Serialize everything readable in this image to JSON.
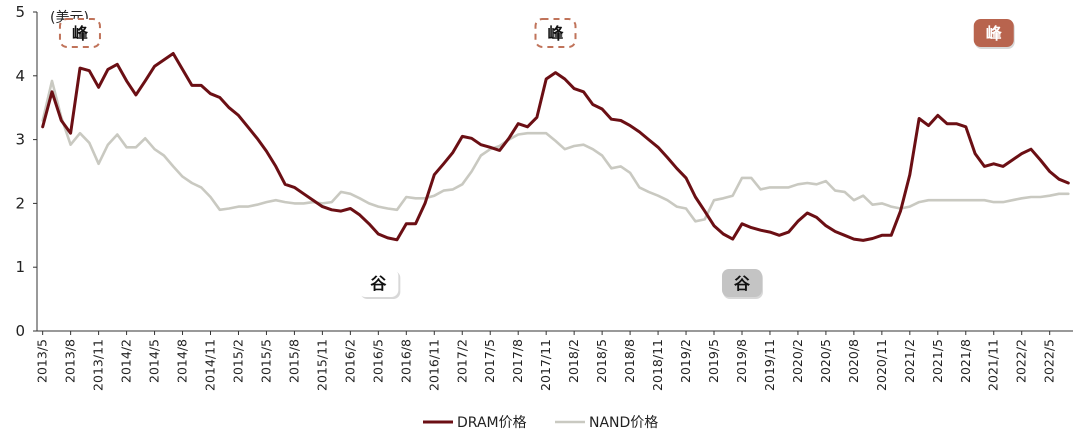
{
  "chart_data": {
    "type": "line",
    "y_unit_label": "(美元)",
    "ylim": [
      0,
      5
    ],
    "yticks": [
      "0",
      "1",
      "2",
      "3",
      "4",
      "5"
    ],
    "x_tick_labels": [
      "2013/5",
      "2013/8",
      "2013/11",
      "2014/2",
      "2014/5",
      "2014/8",
      "2014/11",
      "2015/2",
      "2015/5",
      "2015/8",
      "2015/11",
      "2016/2",
      "2016/5",
      "2016/8",
      "2016/11",
      "2017/2",
      "2017/5",
      "2017/8",
      "2017/11",
      "2018/2",
      "2018/5",
      "2018/8",
      "2018/11",
      "2019/2",
      "2019/5",
      "2019/8",
      "2019/11",
      "2020/2",
      "2020/5",
      "2020/8",
      "2020/11",
      "2021/2",
      "2021/5",
      "2021/8",
      "2021/11",
      "2022/2",
      "2022/5"
    ],
    "x_start": "2013/5",
    "grid": false,
    "legend_position": "bottom",
    "series": [
      {
        "name": "DRAM价格",
        "color": "#6b0f14",
        "values": [
          3.2,
          3.75,
          3.3,
          3.1,
          4.12,
          4.08,
          3.82,
          4.1,
          4.18,
          3.92,
          3.7,
          3.92,
          4.15,
          4.25,
          4.35,
          4.1,
          3.85,
          3.85,
          3.72,
          3.66,
          3.5,
          3.38,
          3.2,
          3.02,
          2.82,
          2.58,
          2.3,
          2.25,
          2.15,
          2.05,
          1.95,
          1.9,
          1.88,
          1.92,
          1.82,
          1.68,
          1.52,
          1.46,
          1.43,
          1.68,
          1.68,
          2.0,
          2.45,
          2.62,
          2.8,
          3.05,
          3.02,
          2.92,
          2.88,
          2.83,
          3.02,
          3.25,
          3.2,
          3.35,
          3.95,
          4.05,
          3.95,
          3.8,
          3.75,
          3.55,
          3.48,
          3.32,
          3.3,
          3.22,
          3.12,
          3.0,
          2.88,
          2.72,
          2.55,
          2.4,
          2.1,
          1.88,
          1.65,
          1.52,
          1.44,
          1.68,
          1.62,
          1.58,
          1.55,
          1.5,
          1.55,
          1.72,
          1.85,
          1.78,
          1.65,
          1.56,
          1.5,
          1.44,
          1.42,
          1.45,
          1.5,
          1.5,
          1.88,
          2.45,
          3.33,
          3.22,
          3.38,
          3.25,
          3.25,
          3.2,
          2.78,
          2.58,
          2.62,
          2.58,
          2.68,
          2.78,
          2.85,
          2.68,
          2.5,
          2.38,
          2.32
        ]
      },
      {
        "name": "NAND价格",
        "color": "#c9c9c1",
        "values": [
          3.3,
          3.92,
          3.35,
          2.92,
          3.1,
          2.95,
          2.62,
          2.92,
          3.08,
          2.88,
          2.88,
          3.02,
          2.85,
          2.75,
          2.58,
          2.42,
          2.32,
          2.25,
          2.1,
          1.9,
          1.92,
          1.95,
          1.95,
          1.98,
          2.02,
          2.05,
          2.02,
          2.0,
          2.0,
          2.02,
          2.0,
          2.02,
          2.18,
          2.15,
          2.08,
          2.0,
          1.95,
          1.92,
          1.9,
          2.1,
          2.08,
          2.08,
          2.12,
          2.2,
          2.22,
          2.3,
          2.5,
          2.75,
          2.85,
          2.9,
          3.0,
          3.08,
          3.1,
          3.1,
          3.1,
          2.98,
          2.85,
          2.9,
          2.92,
          2.85,
          2.75,
          2.55,
          2.58,
          2.48,
          2.25,
          2.18,
          2.12,
          2.05,
          1.95,
          1.92,
          1.72,
          1.75,
          2.05,
          2.08,
          2.12,
          2.4,
          2.4,
          2.22,
          2.25,
          2.25,
          2.25,
          2.3,
          2.32,
          2.3,
          2.35,
          2.2,
          2.18,
          2.05,
          2.12,
          1.98,
          2.0,
          1.95,
          1.92,
          1.95,
          2.02,
          2.05,
          2.05,
          2.05,
          2.05,
          2.05,
          2.05,
          2.05,
          2.02,
          2.02,
          2.05,
          2.08,
          2.1,
          2.1,
          2.12,
          2.15,
          2.15
        ]
      }
    ],
    "annotations": [
      {
        "text": "峰",
        "index": 4,
        "style": "dashed",
        "at": "top"
      },
      {
        "text": "谷",
        "index": 36,
        "style": "shadow",
        "at": "bottom"
      },
      {
        "text": "峰",
        "index": 55,
        "style": "dashed",
        "at": "top"
      },
      {
        "text": "谷",
        "index": 75,
        "style": "gray",
        "at": "bottom"
      },
      {
        "text": "峰",
        "index": 102,
        "style": "filled",
        "at": "top"
      }
    ],
    "legend": [
      {
        "label": "DRAM价格",
        "series": 0
      },
      {
        "label": "NAND价格",
        "series": 1
      }
    ]
  }
}
